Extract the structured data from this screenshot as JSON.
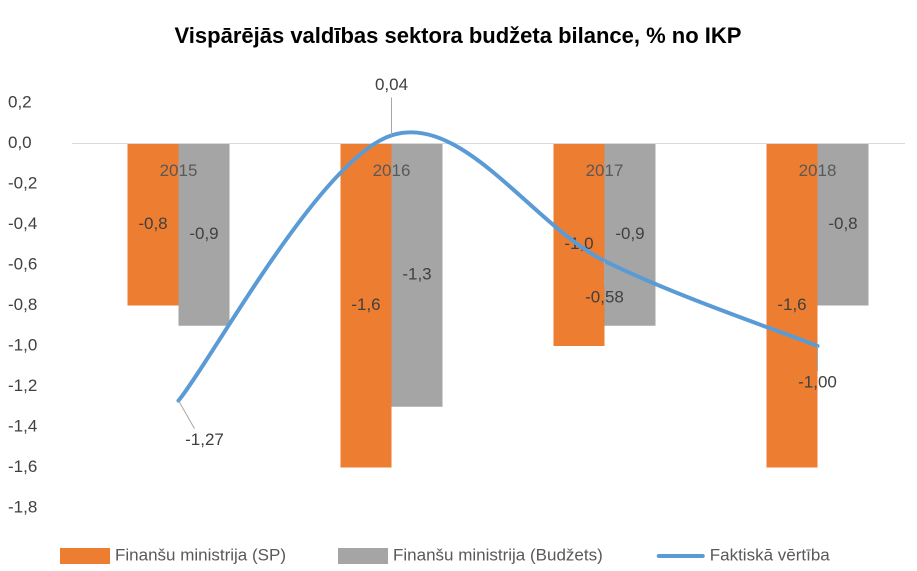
{
  "chart_data": {
    "type": "bar",
    "title": "Vispārējās valdības sektora budžeta bilance, % no IKP",
    "categories": [
      "2015",
      "2016",
      "2017",
      "2018"
    ],
    "series": [
      {
        "name": "Finanšu ministrija (SP)",
        "color": "#ED7D31",
        "values": [
          -0.8,
          -1.6,
          -1.0,
          -1.6
        ],
        "value_labels": [
          "-0,8",
          "-1,6",
          "-1,0",
          "-1,6"
        ]
      },
      {
        "name": "Finanšu ministrija (Budžets)",
        "color": "#A5A5A5",
        "values": [
          -0.9,
          -1.3,
          -0.9,
          -0.8
        ],
        "value_labels": [
          "-0,9",
          "-1,3",
          "-0,9",
          "-0,8"
        ]
      },
      {
        "name": "Faktiskā vērtība",
        "type": "line",
        "color": "#5B9BD5",
        "values": [
          -1.27,
          0.04,
          -0.58,
          -1.0
        ],
        "value_labels": [
          "-1,27",
          "0,04",
          "-0,58",
          "-1,00"
        ]
      }
    ],
    "ylim": [
      -1.8,
      0.2
    ],
    "yticks": [
      {
        "value": -1.8,
        "label": "-1,8"
      },
      {
        "value": -1.6,
        "label": "-1,6"
      },
      {
        "value": -1.4,
        "label": "-1,4"
      },
      {
        "value": -1.2,
        "label": "-1,2"
      },
      {
        "value": -1.0,
        "label": "-1,0"
      },
      {
        "value": -0.8,
        "label": "-0,8"
      },
      {
        "value": -0.6,
        "label": "-0,6"
      },
      {
        "value": -0.4,
        "label": "-0,4"
      },
      {
        "value": -0.2,
        "label": "-0,2"
      },
      {
        "value": 0.0,
        "label": "0,0"
      },
      {
        "value": 0.2,
        "label": "0,2"
      }
    ],
    "legend": "bottom"
  }
}
